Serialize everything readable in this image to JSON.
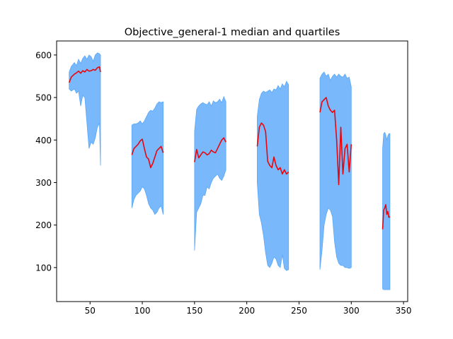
{
  "chart_data": {
    "type": "area",
    "title": "Objective_general-1 median and quartiles",
    "xlabel": "",
    "ylabel": "",
    "xlim": [
      18,
      354
    ],
    "ylim": [
      20,
      633
    ],
    "xticks": [
      50,
      100,
      150,
      200,
      250,
      300,
      350
    ],
    "yticks": [
      100,
      200,
      300,
      400,
      500,
      600
    ],
    "grid": false,
    "colors": {
      "band": "#79b9fb",
      "band_edge": "#5aa8f6",
      "median": "#e8060d"
    },
    "segments": [
      {
        "x": [
          30,
          32,
          35,
          37,
          39,
          41,
          43,
          45,
          47,
          49,
          51,
          53,
          55,
          57,
          59,
          60
        ],
        "q1": [
          520,
          515,
          520,
          510,
          515,
          480,
          505,
          500,
          440,
          380,
          395,
          390,
          405,
          430,
          440,
          340
        ],
        "median": [
          535,
          548,
          555,
          558,
          562,
          557,
          563,
          560,
          566,
          562,
          563,
          566,
          564,
          570,
          572,
          560
        ],
        "q3": [
          560,
          573,
          582,
          575,
          590,
          580,
          592,
          598,
          590,
          600,
          596,
          585,
          600,
          605,
          603,
          600
        ]
      },
      {
        "x": [
          90,
          92,
          94,
          96,
          98,
          100,
          102,
          104,
          106,
          108,
          110,
          112,
          114,
          116,
          118,
          120
        ],
        "q1": [
          240,
          260,
          270,
          275,
          280,
          290,
          285,
          270,
          250,
          240,
          235,
          225,
          230,
          240,
          245,
          225
        ],
        "median": [
          365,
          380,
          385,
          390,
          398,
          402,
          380,
          360,
          355,
          335,
          345,
          360,
          375,
          380,
          385,
          370
        ],
        "q3": [
          435,
          438,
          438,
          440,
          445,
          438,
          445,
          455,
          465,
          470,
          468,
          475,
          485,
          490,
          488,
          490
        ]
      },
      {
        "x": [
          150,
          152,
          154,
          156,
          158,
          160,
          162,
          164,
          166,
          168,
          170,
          172,
          174,
          176,
          178,
          180
        ],
        "q1": [
          140,
          230,
          240,
          250,
          270,
          270,
          290,
          285,
          300,
          310,
          315,
          320,
          310,
          305,
          315,
          330
        ],
        "median": [
          348,
          378,
          358,
          365,
          372,
          370,
          365,
          368,
          376,
          372,
          370,
          380,
          390,
          400,
          405,
          395
        ],
        "q3": [
          420,
          472,
          480,
          485,
          488,
          485,
          483,
          490,
          480,
          492,
          488,
          490,
          496,
          488,
          502,
          490
        ]
      },
      {
        "x": [
          210,
          212,
          214,
          216,
          218,
          220,
          222,
          224,
          226,
          228,
          230,
          232,
          234,
          236,
          238,
          240
        ],
        "q1": [
          300,
          225,
          205,
          175,
          135,
          105,
          100,
          110,
          125,
          120,
          105,
          100,
          130,
          98,
          93,
          95
        ],
        "median": [
          385,
          430,
          440,
          435,
          420,
          350,
          340,
          335,
          360,
          340,
          330,
          335,
          320,
          330,
          320,
          325
        ],
        "q3": [
          455,
          495,
          510,
          515,
          512,
          515,
          518,
          512,
          520,
          518,
          528,
          520,
          532,
          525,
          538,
          530
        ]
      },
      {
        "x": [
          270,
          272,
          274,
          276,
          278,
          280,
          282,
          284,
          286,
          288,
          290,
          292,
          294,
          296,
          298,
          300
        ],
        "q1": [
          95,
          140,
          200,
          225,
          240,
          235,
          220,
          160,
          125,
          110,
          105,
          105,
          100,
          100,
          98,
          100
        ],
        "median": [
          465,
          490,
          495,
          500,
          480,
          470,
          465,
          470,
          400,
          295,
          430,
          320,
          380,
          390,
          325,
          390
        ],
        "q3": [
          545,
          555,
          560,
          550,
          555,
          540,
          550,
          555,
          548,
          555,
          550,
          548,
          555,
          545,
          548,
          525
        ]
      },
      {
        "x": [
          330,
          331,
          332,
          333,
          334,
          335,
          336,
          337
        ],
        "q1": [
          50,
          48,
          48,
          48,
          48,
          48,
          48,
          48
        ],
        "median": [
          190,
          235,
          240,
          248,
          225,
          232,
          218,
          220
        ],
        "q3": [
          380,
          415,
          418,
          412,
          400,
          410,
          415,
          415
        ]
      }
    ]
  }
}
